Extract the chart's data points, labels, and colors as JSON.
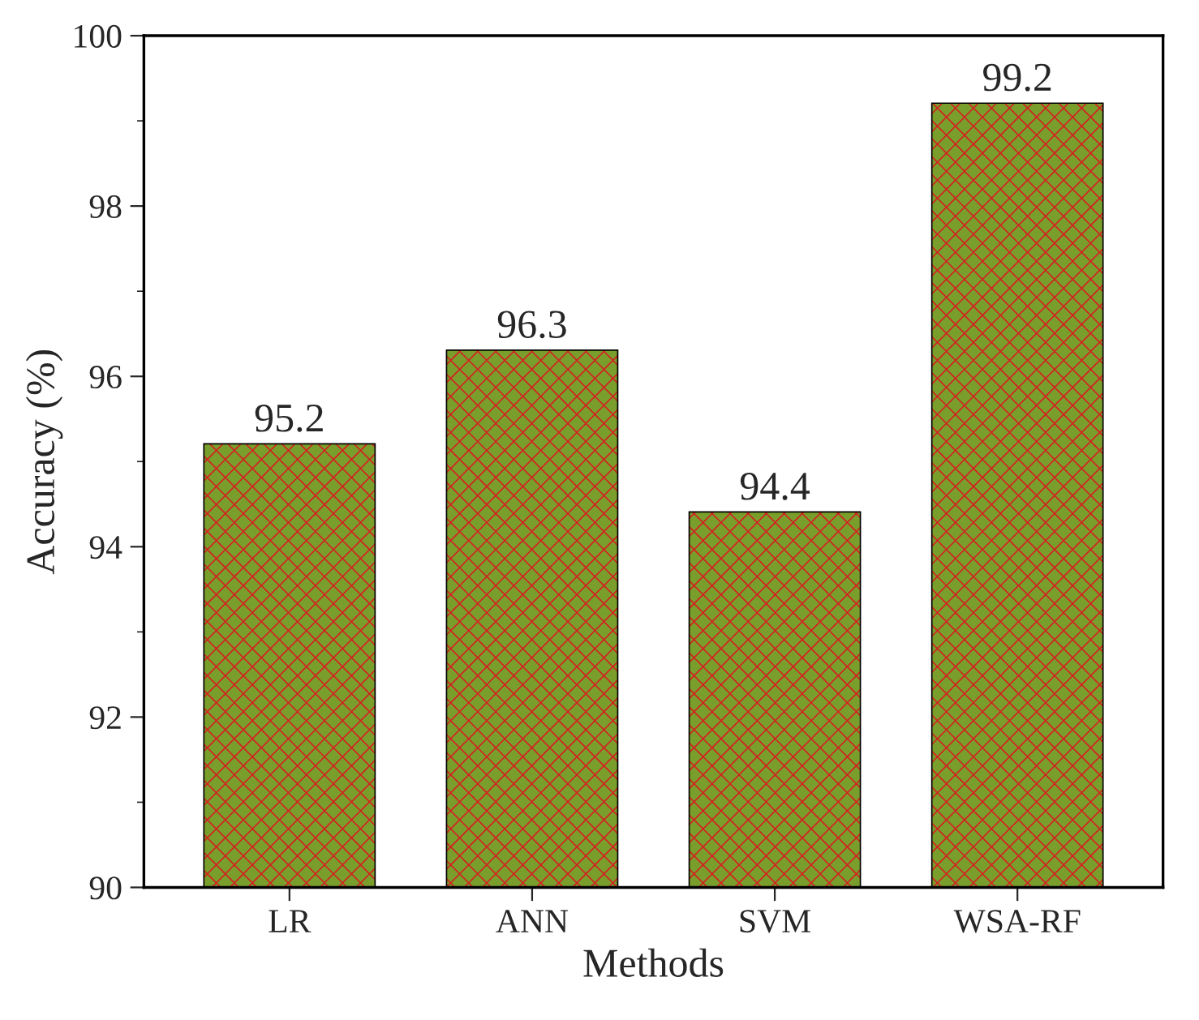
{
  "chart_data": {
    "type": "bar",
    "xlabel": "Methods",
    "ylabel": "Accuracy (%)",
    "categories": [
      "LR",
      "ANN",
      "SVM",
      "WSA-RF"
    ],
    "values": [
      95.2,
      96.3,
      94.4,
      99.2
    ],
    "color": "#7a9e2c",
    "ylim": [
      90,
      100
    ],
    "yticks": [
      90,
      92,
      94,
      96,
      98,
      100
    ],
    "data_labels": true,
    "grid": false,
    "legend": false
  }
}
